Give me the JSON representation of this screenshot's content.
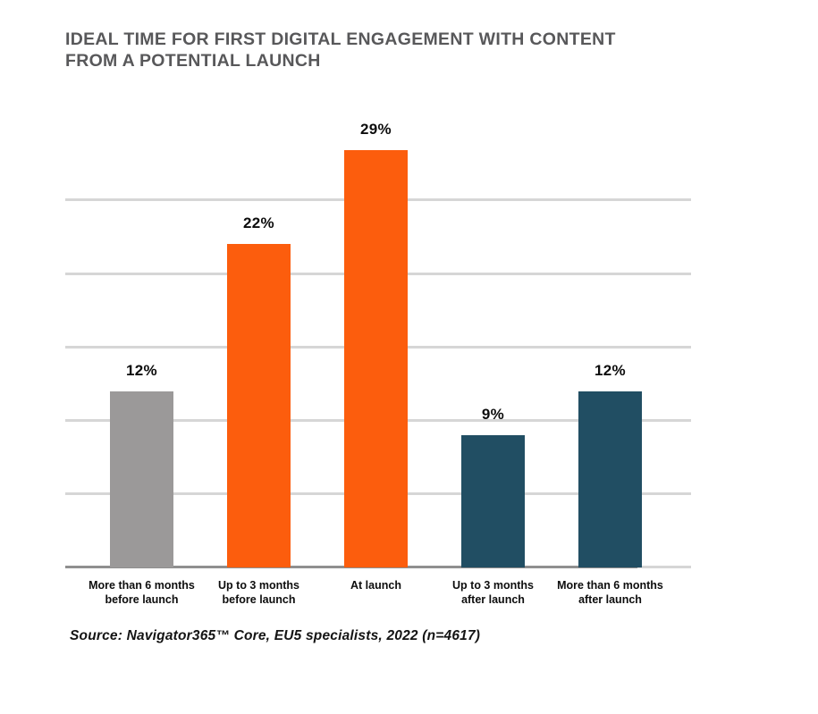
{
  "header": {
    "title_line1": "IDEAL TIME FOR FIRST DIGITAL ENGAGEMENT WITH CONTENT",
    "title_line2": "FROM A POTENTIAL LAUNCH",
    "title_color": "#58585A"
  },
  "chart_data": {
    "type": "bar",
    "title": "Ideal time for first digital engagement with content from a potential launch",
    "categories": [
      "More than 6 months\nbefore launch",
      "Up to 3 months\nbefore launch",
      "At launch",
      "Up to 3 months\nafter launch",
      "More than 6 months\nafter launch"
    ],
    "values": [
      12,
      22,
      29,
      9,
      12
    ],
    "value_labels": [
      "12%",
      "22%",
      "29%",
      "9%",
      "12%"
    ],
    "bar_colors": [
      "#9B9999",
      "#FC5D0D",
      "#FC5D0D",
      "#214E63",
      "#214E63"
    ],
    "xlabel": "",
    "ylabel": "",
    "ylim": [
      0,
      30.4
    ],
    "gridlines_pct": [
      5,
      10,
      15,
      20,
      25
    ],
    "gridline_color": "#D6D6D6",
    "axis_color": "#8F8F8F",
    "grid": true,
    "legend": "none"
  },
  "footer": {
    "source": "Source: Navigator365™ Core, EU5 specialists, 2022 (n=4617)"
  }
}
